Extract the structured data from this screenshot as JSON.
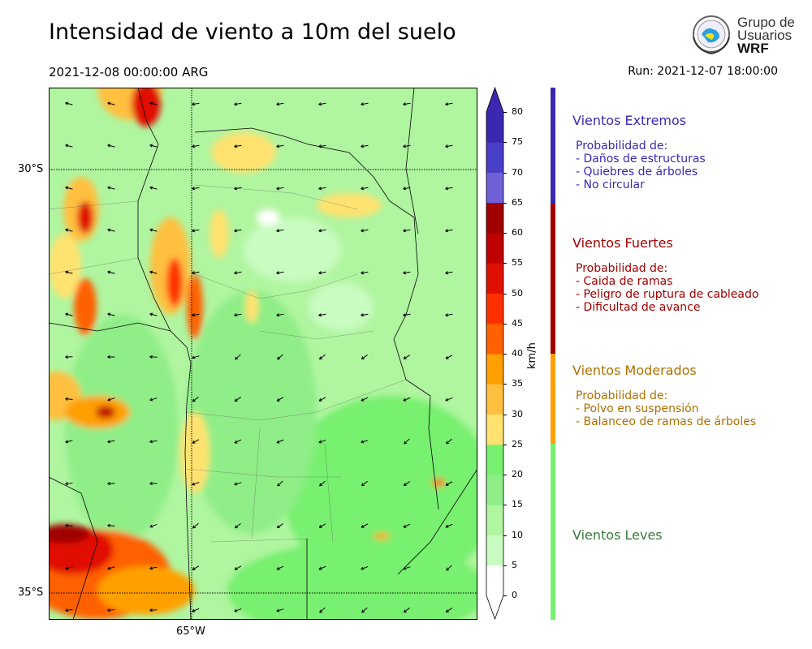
{
  "title": "Intensidad de viento a 10m del suelo",
  "valid_time": "2021-12-08 00:00:00 ARG",
  "run_time": "Run: 2021-12-07 18:00:00",
  "logo": {
    "line1": "Grupo de",
    "line2": "Usuarios",
    "line3": "WRF"
  },
  "map": {
    "lat_labels": [
      "30°S",
      "35°S"
    ],
    "lon_labels": [
      "65°W"
    ]
  },
  "colorbar": {
    "unit": "km/h",
    "ticks": [
      "0",
      "5",
      "10",
      "15",
      "20",
      "25",
      "30",
      "35",
      "40",
      "45",
      "50",
      "55",
      "60",
      "65",
      "70",
      "75",
      "80"
    ],
    "colors": [
      "#ffffff",
      "#c8fcc0",
      "#b0f5a0",
      "#90ee88",
      "#78f070",
      "#ffe270",
      "#ffc040",
      "#ffa000",
      "#ff6000",
      "#ff3000",
      "#e01000",
      "#c00000",
      "#a00000",
      "#7060d8",
      "#4a40c8",
      "#3a28b0"
    ],
    "over_color": "#3a28b0",
    "under_color": "#ffffff"
  },
  "categories": [
    {
      "title": "Vientos Extremos",
      "color": "#3a28b0",
      "lines": [
        "Probabilidad de:",
        "- Daños de estructuras",
        "- Quiebres de árboles",
        "- No circular"
      ]
    },
    {
      "title": "Vientos Fuertes",
      "color": "#a00000",
      "lines": [
        "Probabilidad de:",
        "- Caida de ramas",
        "- Peligro de ruptura de cableado",
        "- Dificultad de avance"
      ]
    },
    {
      "title": "Vientos Moderados",
      "color": "#b07000",
      "bar_color": "#ffa000",
      "lines": [
        "Probabilidad de:",
        "- Polvo en suspensión",
        "- Balanceo de ramas de árboles"
      ]
    },
    {
      "title": "Vientos Leves",
      "color": "#3a7a3a",
      "bar_color": "#78f070",
      "lines": []
    }
  ]
}
